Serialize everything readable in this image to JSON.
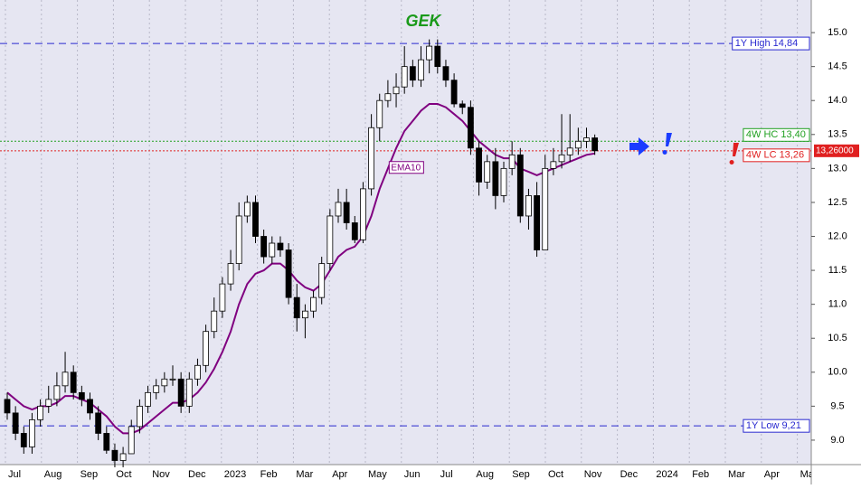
{
  "chart_data": {
    "type": "candlestick",
    "title": "GEK",
    "categories": [
      "Jul",
      "Aug",
      "Sep",
      "Oct",
      "Nov",
      "Dec",
      "2023",
      "Feb",
      "Mar",
      "Apr",
      "May",
      "Jun",
      "Jul",
      "Aug",
      "Sep",
      "Oct",
      "Nov",
      "Dec",
      "2024",
      "Feb",
      "Mar",
      "Apr",
      "May"
    ],
    "open": [
      9.6,
      9.4,
      9.1,
      8.9,
      9.3,
      9.5,
      9.6,
      9.8,
      10.0,
      9.7,
      9.6,
      9.4,
      9.1,
      8.85,
      8.7,
      8.8,
      9.2,
      9.5,
      9.7,
      9.8,
      9.9,
      9.9,
      9.5,
      9.9,
      10.1,
      10.6,
      10.9,
      11.3,
      11.6,
      12.3,
      12.5,
      12.0,
      11.7,
      11.9,
      11.8,
      11.1,
      10.8,
      10.9,
      11.1,
      11.6,
      12.3,
      12.5,
      12.2,
      11.95,
      12.7,
      13.6,
      14.0,
      14.1,
      14.2,
      14.5,
      14.3,
      14.6,
      14.8,
      14.5,
      14.3,
      13.95,
      13.9,
      13.3,
      12.8,
      13.1,
      12.6,
      13.0,
      13.2,
      12.3,
      12.6,
      11.8,
      13.0,
      13.1,
      13.2,
      13.3,
      13.4,
      13.45
    ],
    "high": [
      9.7,
      9.5,
      9.2,
      9.4,
      9.6,
      9.8,
      10.0,
      10.3,
      10.1,
      9.8,
      9.7,
      9.5,
      9.2,
      8.95,
      8.9,
      9.3,
      9.6,
      9.8,
      9.9,
      10.0,
      10.1,
      10.0,
      10.0,
      10.2,
      10.7,
      11.1,
      11.4,
      11.8,
      12.5,
      12.6,
      12.6,
      12.1,
      12.0,
      12.0,
      11.9,
      11.3,
      11.0,
      11.2,
      11.7,
      12.4,
      12.7,
      12.7,
      12.3,
      12.8,
      13.8,
      14.1,
      14.3,
      14.4,
      14.8,
      14.6,
      14.8,
      14.9,
      14.9,
      14.6,
      14.4,
      14.0,
      14.0,
      13.4,
      13.2,
      13.3,
      13.1,
      13.4,
      13.3,
      12.7,
      12.8,
      13.2,
      13.3,
      13.8,
      13.8,
      13.6,
      13.6,
      13.5
    ],
    "low": [
      9.3,
      9.0,
      8.8,
      8.8,
      9.2,
      9.4,
      9.5,
      9.7,
      9.6,
      9.5,
      9.3,
      9.0,
      8.8,
      8.6,
      8.6,
      8.8,
      9.1,
      9.4,
      9.6,
      9.7,
      9.8,
      9.4,
      9.4,
      9.8,
      10.0,
      10.5,
      10.8,
      11.2,
      11.5,
      12.2,
      11.9,
      11.6,
      11.6,
      11.7,
      11.0,
      10.6,
      10.5,
      10.8,
      11.0,
      11.5,
      12.2,
      12.1,
      11.9,
      11.9,
      12.6,
      13.4,
      13.9,
      13.9,
      14.1,
      14.2,
      14.2,
      14.4,
      14.4,
      14.2,
      13.9,
      13.8,
      13.2,
      12.6,
      12.7,
      12.4,
      12.5,
      12.9,
      12.2,
      12.1,
      11.7,
      11.8,
      12.9,
      13.0,
      13.1,
      13.2,
      13.3,
      13.2
    ],
    "close": [
      9.4,
      9.1,
      8.9,
      9.3,
      9.5,
      9.6,
      9.8,
      10.0,
      9.7,
      9.6,
      9.4,
      9.1,
      8.85,
      8.7,
      8.8,
      9.2,
      9.5,
      9.7,
      9.8,
      9.9,
      9.9,
      9.5,
      9.9,
      10.1,
      10.6,
      10.9,
      11.3,
      11.6,
      12.3,
      12.5,
      12.0,
      11.7,
      11.9,
      11.8,
      11.1,
      10.8,
      10.9,
      11.1,
      11.6,
      12.3,
      12.5,
      12.2,
      11.95,
      12.7,
      13.6,
      14.0,
      14.1,
      14.2,
      14.5,
      14.3,
      14.6,
      14.8,
      14.5,
      14.3,
      13.95,
      13.9,
      13.3,
      12.8,
      13.1,
      12.6,
      13.0,
      13.2,
      12.3,
      12.6,
      11.8,
      13.0,
      13.1,
      13.2,
      13.3,
      13.4,
      13.45,
      13.26
    ],
    "ema": {
      "name": "EMA10",
      "color": "#800080",
      "values": [
        9.7,
        9.6,
        9.5,
        9.45,
        9.5,
        9.5,
        9.55,
        9.65,
        9.65,
        9.6,
        9.55,
        9.45,
        9.35,
        9.2,
        9.1,
        9.1,
        9.15,
        9.25,
        9.35,
        9.45,
        9.55,
        9.55,
        9.6,
        9.7,
        9.85,
        10.05,
        10.3,
        10.6,
        11.0,
        11.3,
        11.45,
        11.5,
        11.6,
        11.6,
        11.5,
        11.35,
        11.25,
        11.2,
        11.3,
        11.5,
        11.7,
        11.8,
        11.85,
        12.0,
        12.3,
        12.7,
        13.0,
        13.3,
        13.55,
        13.7,
        13.85,
        13.95,
        13.95,
        13.9,
        13.8,
        13.7,
        13.55,
        13.4,
        13.3,
        13.2,
        13.15,
        13.15,
        13.0,
        12.95,
        12.9,
        12.95,
        13.0,
        13.05,
        13.1,
        13.15,
        13.2,
        13.22
      ]
    },
    "reference_lines": [
      {
        "value": 14.84,
        "label": "1Y High 14,84",
        "color": "#2a2ad0"
      },
      {
        "value": 9.21,
        "label": "1Y Low 9,21",
        "color": "#2a2ad0"
      },
      {
        "value": 13.4,
        "label": "4W HC 13,40",
        "color": "#20a020"
      },
      {
        "value": 13.26,
        "label": "4W LC 13,26",
        "color": "#e02020"
      }
    ],
    "last_price": {
      "value": 13.26,
      "label": "13,26000",
      "color": "#e02020"
    },
    "ylim": [
      8.64,
      15.48
    ],
    "yticks": [
      {
        "value": 9.0,
        "label": "9.0"
      },
      {
        "value": 9.5,
        "label": "9.5"
      },
      {
        "value": 10.0,
        "label": "10.0"
      },
      {
        "value": 10.5,
        "label": "10.5"
      },
      {
        "value": 11.0,
        "label": "11.0"
      },
      {
        "value": 11.5,
        "label": "11.5"
      },
      {
        "value": 12.0,
        "label": "12.0"
      },
      {
        "value": 12.5,
        "label": "12.5"
      },
      {
        "value": 13.0,
        "label": "13.0"
      },
      {
        "value": 13.5,
        "label": "13.5"
      },
      {
        "value": 14.0,
        "label": "14.0"
      },
      {
        "value": 14.5,
        "label": "14.5"
      },
      {
        "value": 15.0,
        "label": "15.0"
      }
    ],
    "grid": "x"
  }
}
